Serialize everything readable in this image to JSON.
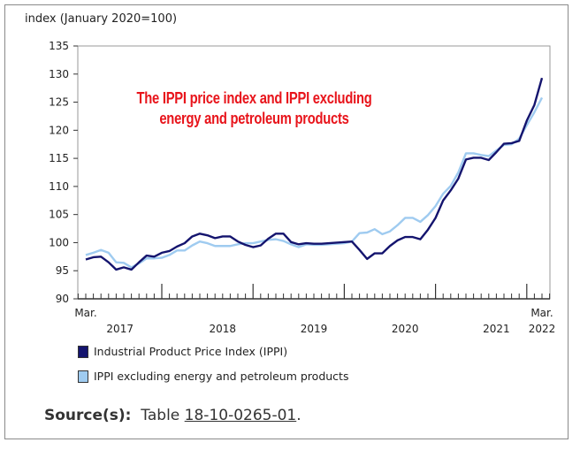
{
  "chart_data": {
    "type": "line",
    "title": "The IPPI price index and IPPI excluding energy and petroleum products",
    "ylabel": "index (January 2020=100)",
    "ylim": [
      90,
      135
    ],
    "yticks": [
      90,
      95,
      100,
      105,
      110,
      115,
      120,
      125,
      130,
      135
    ],
    "x_start": "2017-03",
    "x_end": "2022-03",
    "xtick_labels": {
      "start": "Mar.",
      "end": "Mar.",
      "years": [
        "2017",
        "2018",
        "2019",
        "2020",
        "2021",
        "2022"
      ]
    },
    "grid": false,
    "legend": "bottom",
    "series": [
      {
        "name": "Industrial Product Price Index (IPPI)",
        "color": "#14146e",
        "values": [
          97.0,
          97.4,
          97.5,
          96.5,
          95.2,
          95.6,
          95.2,
          96.5,
          97.7,
          97.5,
          98.2,
          98.5,
          99.3,
          99.9,
          101.1,
          101.6,
          101.3,
          100.8,
          101.1,
          101.1,
          100.2,
          99.6,
          99.2,
          99.5,
          100.7,
          101.6,
          101.6,
          100.1,
          99.7,
          99.9,
          99.8,
          99.8,
          99.9,
          100.0,
          100.1,
          100.2,
          98.7,
          97.1,
          98.1,
          98.1,
          99.4,
          100.4,
          101.0,
          101.0,
          100.6,
          102.3,
          104.4,
          107.5,
          109.3,
          111.4,
          114.8,
          115.1,
          115.1,
          114.7,
          116.1,
          117.6,
          117.7,
          118.1,
          121.7,
          124.5,
          129.3
        ]
      },
      {
        "name": "IPPI excluding energy and petroleum products",
        "color": "#9fcbf0",
        "values": [
          97.8,
          98.2,
          98.7,
          98.2,
          96.5,
          96.4,
          95.6,
          96.3,
          97.2,
          97.2,
          97.3,
          97.8,
          98.6,
          98.6,
          99.5,
          100.2,
          99.9,
          99.4,
          99.4,
          99.4,
          99.7,
          99.9,
          99.9,
          100.2,
          100.5,
          100.6,
          100.3,
          99.7,
          99.2,
          99.7,
          99.6,
          99.6,
          99.7,
          99.8,
          99.9,
          100.2,
          101.7,
          101.8,
          102.4,
          101.5,
          102.0,
          103.1,
          104.4,
          104.4,
          103.7,
          104.9,
          106.5,
          108.7,
          110.1,
          112.5,
          115.9,
          115.9,
          115.6,
          115.4,
          116.4,
          117.4,
          117.5,
          118.5,
          120.9,
          123.2,
          125.8
        ]
      }
    ]
  },
  "source": {
    "label": "Source(s):",
    "prefix": "Table ",
    "link": "18-10-0265-01",
    "suffix": "."
  }
}
